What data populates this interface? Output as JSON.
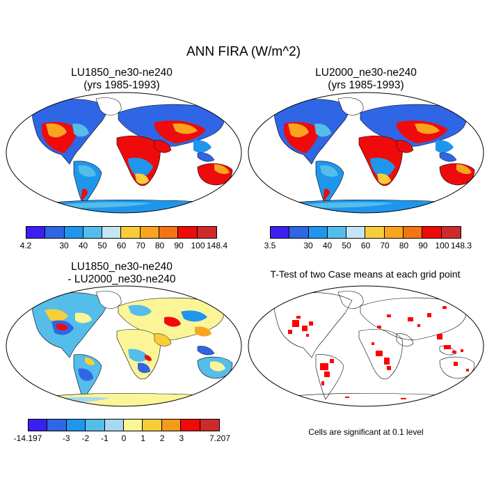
{
  "figure": {
    "title": "ANN FIRA (W/m^2)"
  },
  "panels": [
    {
      "title_line1": "LU1850_ne30-ne240",
      "title_line2": "(yrs 1985-1993)"
    },
    {
      "title_line1": "LU2000_ne30-ne240",
      "title_line2": "(yrs 1985-1993)"
    },
    {
      "title_line1": "LU1850_ne30-ne240",
      "title_line2": "- LU2000_ne30-ne240"
    },
    {
      "title_line1": "T-Test of two Case means at each grid point",
      "title_line2": ""
    }
  ],
  "colorbars": [
    {
      "colors": [
        "#3a1ff0",
        "#2f66e6",
        "#1e96ee",
        "#55bdea",
        "#c4e6f4",
        "#f7ce3a",
        "#f7a41f",
        "#f47414",
        "#ef0b0b",
        "#cf2a2a"
      ],
      "ticks": [
        "4.2",
        "30",
        "40",
        "50",
        "60",
        "70",
        "80",
        "90",
        "100",
        "148.4"
      ]
    },
    {
      "colors": [
        "#3a1ff0",
        "#2f66e6",
        "#1e96ee",
        "#55bdea",
        "#c4e6f4",
        "#f7ce3a",
        "#f7a41f",
        "#f47414",
        "#ef0b0b",
        "#cf2a2a"
      ],
      "ticks": [
        "3.5",
        "30",
        "40",
        "50",
        "60",
        "70",
        "80",
        "90",
        "100",
        "148.3"
      ]
    },
    {
      "colors": [
        "#3a1ff0",
        "#2f66e6",
        "#1e96ee",
        "#55bdea",
        "#a6d8f3",
        "#fbf598",
        "#f7ce3a",
        "#f79a1a",
        "#ef0b0b",
        "#cf2a2a"
      ],
      "ticks": [
        "-14.197",
        "-3",
        "-2",
        "-1",
        "0",
        "1",
        "2",
        "3",
        "7.207"
      ]
    }
  ],
  "significance_note": "Cells are significant at 0.1 level",
  "colors": {
    "significant": "#ff0000",
    "ocean": "#ffffff",
    "coastline": "#000000"
  }
}
